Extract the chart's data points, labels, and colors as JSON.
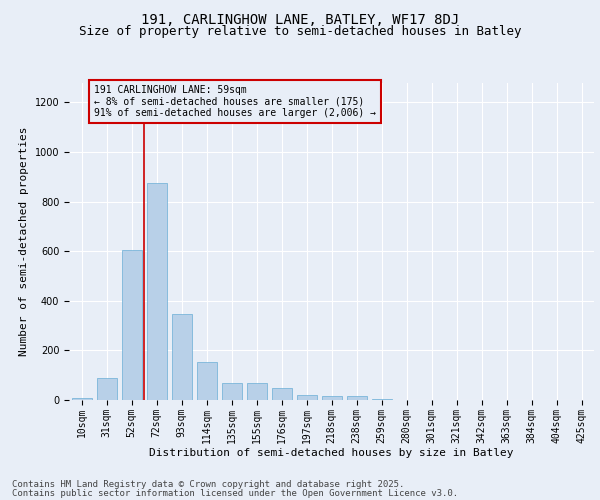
{
  "title_line1": "191, CARLINGHOW LANE, BATLEY, WF17 8DJ",
  "title_line2": "Size of property relative to semi-detached houses in Batley",
  "xlabel": "Distribution of semi-detached houses by size in Batley",
  "ylabel": "Number of semi-detached properties",
  "categories": [
    "10sqm",
    "31sqm",
    "52sqm",
    "72sqm",
    "93sqm",
    "114sqm",
    "135sqm",
    "155sqm",
    "176sqm",
    "197sqm",
    "218sqm",
    "238sqm",
    "259sqm",
    "280sqm",
    "301sqm",
    "321sqm",
    "342sqm",
    "363sqm",
    "384sqm",
    "404sqm",
    "425sqm"
  ],
  "values": [
    8,
    90,
    605,
    875,
    348,
    155,
    68,
    68,
    47,
    22,
    17,
    15,
    3,
    0,
    0,
    0,
    0,
    0,
    0,
    0,
    0
  ],
  "bar_color": "#b8d0e8",
  "bar_edge_color": "#6aaed6",
  "vline_color": "#cc0000",
  "vline_x_index": 2.5,
  "annotation_title": "191 CARLINGHOW LANE: 59sqm",
  "annotation_line1": "← 8% of semi-detached houses are smaller (175)",
  "annotation_line2": "91% of semi-detached houses are larger (2,006) →",
  "annotation_box_edgecolor": "#cc0000",
  "ylim": [
    0,
    1280
  ],
  "yticks": [
    0,
    200,
    400,
    600,
    800,
    1000,
    1200
  ],
  "bg_color": "#e8eef7",
  "plot_bg_color": "#e8eef7",
  "title_fontsize": 10,
  "subtitle_fontsize": 9,
  "axis_label_fontsize": 8,
  "tick_fontsize": 7,
  "annotation_fontsize": 7,
  "footer_fontsize": 6.5,
  "footer_line1": "Contains HM Land Registry data © Crown copyright and database right 2025.",
  "footer_line2": "Contains public sector information licensed under the Open Government Licence v3.0."
}
